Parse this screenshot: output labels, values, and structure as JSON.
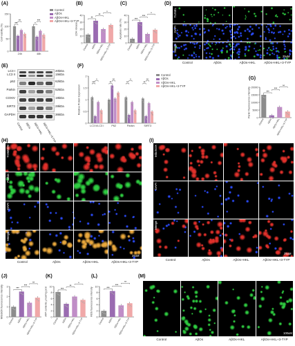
{
  "colors": {
    "control": "#8c8c8c",
    "abos": "#9a6bb1",
    "abos_hkl": "#c08dc7",
    "abos_hkl_3typ": "#f0a8a8"
  },
  "groups": [
    "Control",
    "AβOs",
    "AβOs+HKL",
    "AβOs+HKL+3-TYP"
  ],
  "panels": {
    "A": "(A)",
    "B": "(B)",
    "C": "(C)",
    "D": "(D)",
    "E": "(E)",
    "F": "(F)",
    "G": "(G)",
    "H": "(H)",
    "I": "(I)",
    "J": "(J)",
    "K": "(K)",
    "L": "(L)",
    "M": "(M)"
  },
  "chart_data": [
    {
      "id": "A",
      "type": "bar",
      "categories": [
        "24h",
        "48h"
      ],
      "series": [
        {
          "name": "Control",
          "values": [
            100,
            100
          ]
        },
        {
          "name": "AβOs",
          "values": [
            62,
            58
          ]
        },
        {
          "name": "AβOs+HKL",
          "values": [
            85,
            82
          ]
        },
        {
          "name": "AβOs+HKL+3-TYP",
          "values": [
            70,
            66
          ]
        }
      ],
      "ylabel": "Cell viability (%)",
      "ylim": [
        0,
        150
      ],
      "yticks": [
        0,
        50,
        100,
        150
      ],
      "significance": [
        "***",
        "**",
        "*",
        "***",
        "**",
        "*"
      ],
      "legend": "top-right"
    },
    {
      "id": "B",
      "type": "bar",
      "categories": [
        "Control",
        "AβOs",
        "AβOs+HKL",
        "AβOs+HKL+3-TYP"
      ],
      "values": [
        12,
        32,
        20,
        26
      ],
      "ylabel": "LDH release",
      "ylim": [
        0,
        40
      ],
      "yticks": [
        0,
        10,
        20,
        30,
        40
      ],
      "significance": [
        "**",
        "**",
        "*"
      ]
    },
    {
      "id": "C",
      "type": "bar",
      "categories": [
        "Control",
        "AβOs",
        "AβOs+HKL",
        "AβOs+HKL+3-TYP"
      ],
      "values": [
        6,
        30,
        13,
        19
      ],
      "ylabel": "Apoptosis rate (%)",
      "ylim": [
        0,
        40
      ],
      "yticks": [
        0,
        10,
        20,
        30,
        40
      ],
      "significance": [
        "***",
        "***",
        "*"
      ]
    },
    {
      "id": "F",
      "type": "bar",
      "categories": [
        "LC3 II/LC3 I",
        "P62",
        "Parkin",
        "SIRT3"
      ],
      "series": [
        {
          "name": "Control",
          "values": [
            1.1,
            1.0,
            1.1,
            1.05
          ]
        },
        {
          "name": "AβOs",
          "values": [
            0.3,
            1.6,
            0.35,
            0.3
          ]
        },
        {
          "name": "AβOs+HKL",
          "values": [
            0.9,
            1.05,
            0.9,
            0.85
          ]
        },
        {
          "name": "AβOs+HKL+3-TYP",
          "values": [
            0.55,
            1.3,
            0.55,
            0.5
          ]
        }
      ],
      "ylabel": "Relative Protein Expression",
      "ylim": [
        0,
        2.0
      ],
      "yticks": [
        0.0,
        0.5,
        1.0,
        1.5,
        2.0
      ],
      "significance": [
        "***",
        "*",
        "**",
        "**",
        "**",
        "*",
        "**",
        "**"
      ],
      "legend": "top-right"
    },
    {
      "id": "G",
      "type": "bar",
      "categories": [
        "Control",
        "AβOs",
        "AβOs+HKL",
        "AβOs+HKL+3-TYP"
      ],
      "values": [
        15000,
        1500,
        7000,
        4000
      ],
      "ylabel": "Parkin fluorescence intensity",
      "ylim": [
        0,
        20000
      ],
      "yticks": [
        0,
        5000,
        10000,
        15000,
        20000
      ],
      "significance": [
        "***",
        "***",
        "**"
      ]
    },
    {
      "id": "J",
      "type": "bar",
      "categories": [
        "Control",
        "AβOs",
        "AβOs+HKL",
        "AβOs+HKL+3-TYP"
      ],
      "values": [
        1.0,
        2.5,
        1.4,
        1.9
      ],
      "ylabel": "MitoSOX fluorescence intensity",
      "ylim": [
        0,
        3
      ],
      "yticks": [
        0,
        1,
        2,
        3
      ],
      "significance": [
        "***",
        "***",
        "**"
      ]
    },
    {
      "id": "K",
      "type": "bar",
      "categories": [
        "Control",
        "AβOs",
        "AβOs+HKL",
        "AβOs+HKL+3-TYP"
      ],
      "values": [
        8.2,
        4.3,
        6.7,
        5.6
      ],
      "ylabel": "ATP contents μmol/mg prot",
      "ylim": [
        0,
        10
      ],
      "yticks": [
        0,
        2,
        4,
        6,
        8,
        10
      ],
      "significance": [
        "***",
        "**",
        "*"
      ]
    },
    {
      "id": "L",
      "type": "bar",
      "categories": [
        "Control",
        "AβOs",
        "AβOs+HKL",
        "AβOs+HKL+3-TYP"
      ],
      "values": [
        2.0,
        8.5,
        3.8,
        4.5
      ],
      "ylabel": "ROS fluorescence intensity",
      "ylim": [
        0,
        10
      ],
      "yticks": [
        0,
        2,
        4,
        6,
        8,
        10
      ],
      "significance": [
        "***",
        "***",
        "**"
      ]
    }
  ],
  "legend": [
    "Control",
    "AβOs",
    "AβOs+HKL",
    "AβOs+HKL+3-TYP"
  ],
  "blot": {
    "labels": [
      "LC3 I",
      "LC3 II",
      "p62",
      "Parkin",
      "COXIV",
      "SIRT3",
      "GAPDH"
    ],
    "sizes": [
      "20kDa",
      "15kDa",
      "62kDa",
      "52kDa",
      "19kDa",
      "28kDa",
      "36kDa"
    ],
    "lanes": [
      "Control",
      "AβOs",
      "AβOs+HKL",
      "AβOs+HKL+3-TYP"
    ]
  },
  "micro_D": {
    "rows": [
      "TUNEL",
      "DAPI",
      "Merge"
    ],
    "cols": [
      "Control",
      "AβOs",
      "AβOs+HKL",
      "AβOs+HKL+3-TYP"
    ],
    "scale": "25uM"
  },
  "micro_H": {
    "rows": [
      "TOMM20",
      "Parkin",
      "DAPI",
      "Merge"
    ],
    "cols": [
      "Control",
      "AβOs",
      "AβOs+HKL",
      "AβOs+HKL+3-TYP"
    ],
    "scale": "25uM"
  },
  "micro_I": {
    "rows": [
      "MitoSOX",
      "DAPI",
      "Merge"
    ],
    "cols": [
      "Control",
      "AβOs",
      "AβOs+HKL",
      "AβOs+HKL+3-TYP"
    ],
    "scale": "25uM"
  },
  "micro_M": {
    "cols": [
      "Control",
      "AβOs",
      "AβOs+HKL",
      "AβOs+HKL+3-TYP"
    ],
    "scale": "100uM"
  }
}
